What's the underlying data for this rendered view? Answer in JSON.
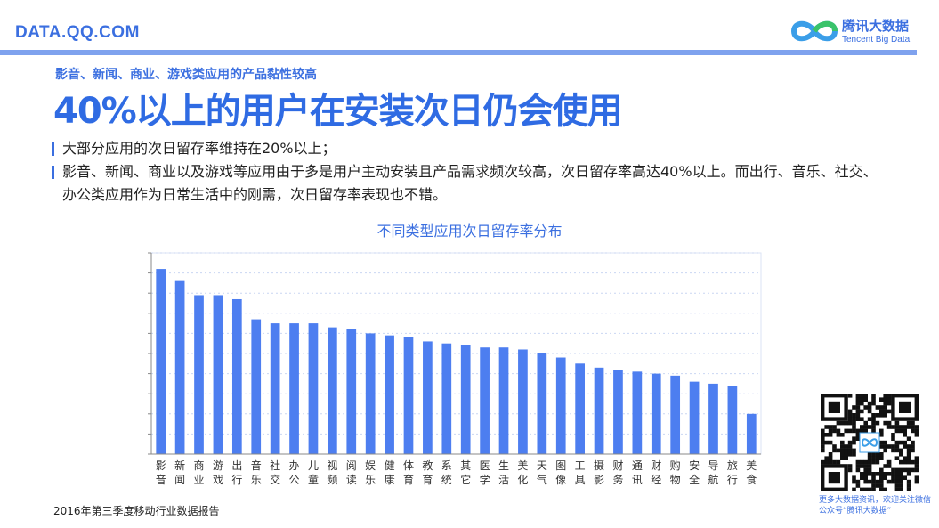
{
  "header": {
    "site": "DATA.QQ.COM",
    "logo_cn": "腾讯大数据",
    "logo_en": "Tencent Big Data"
  },
  "subtitle": "影音、新闻、商业、游戏类应用的产品黏性较高",
  "headline": "40%以上的用户在安装次日仍会使用",
  "bullets": [
    "大部分应用的次日留存率维持在20%以上；",
    "影音、新闻、商业以及游戏等应用由于多是用户主动安装且产品需求频次较高，次日留存率高达40%以上。而出行、音乐、社交、办公类应用作为日常生活中的刚需，次日留存率表现也不错。"
  ],
  "qr_caption": "更多大数据资讯，欢迎关注微信公众号“腾讯大数据”",
  "footer": "2016年第三季度移动行业数据报告",
  "colors": {
    "accent": "#3b6fe0",
    "bar": "#4d7ef0",
    "grid": "#c9d6f2"
  },
  "chart_data": {
    "type": "bar",
    "title": "不同类型应用次日留存率分布",
    "categories": [
      "影音",
      "新闻",
      "商业",
      "游戏",
      "出行",
      "音乐",
      "社交",
      "办公",
      "儿童",
      "视频",
      "阅读",
      "娱乐",
      "健康",
      "体育",
      "教育",
      "系统",
      "其它",
      "医学",
      "生活",
      "美化",
      "天气",
      "图像",
      "工具",
      "摄影",
      "财务",
      "通讯",
      "财经",
      "购物",
      "安全",
      "导航",
      "旅行",
      "美食"
    ],
    "values": [
      46.0,
      43.0,
      39.5,
      39.5,
      38.5,
      33.5,
      32.5,
      32.5,
      32.5,
      31.5,
      31.0,
      30.0,
      29.5,
      29.0,
      28.0,
      27.5,
      27.0,
      26.5,
      26.5,
      26.0,
      25.0,
      24.0,
      22.5,
      21.5,
      21.0,
      20.5,
      20.0,
      19.5,
      18.0,
      17.5,
      17.0,
      10.0
    ],
    "ylim": [
      0,
      50
    ],
    "ytick_step": 5,
    "grid": true,
    "xlabel": "",
    "ylabel": ""
  }
}
